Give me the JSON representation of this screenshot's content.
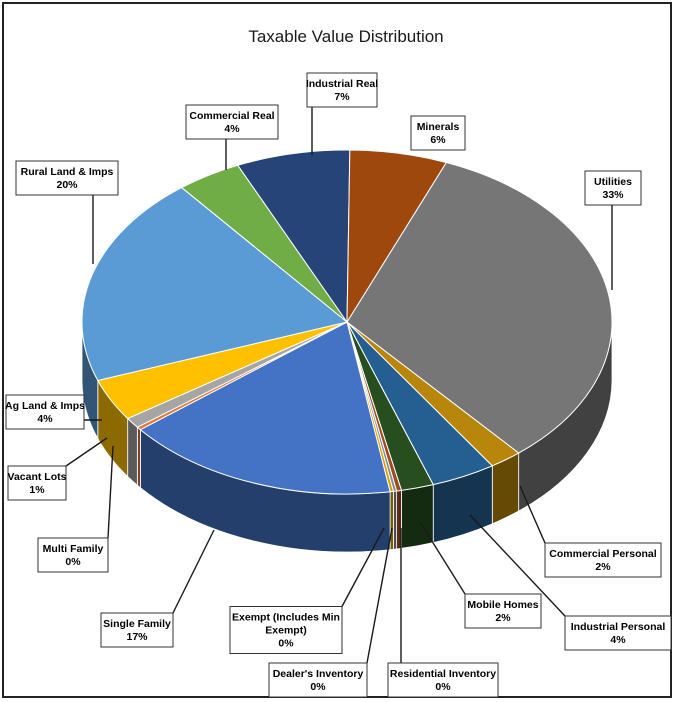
{
  "chart_data": {
    "type": "pie",
    "title": "Taxable Value Distribution",
    "legend": "none",
    "slices": [
      {
        "label": "Utilities",
        "pct_text": "33%",
        "value": 33,
        "color": "#767676"
      },
      {
        "label": "Commercial Personal",
        "pct_text": "2%",
        "value": 2,
        "color": "#b8860b"
      },
      {
        "label": "Industrial Personal",
        "pct_text": "4%",
        "value": 4,
        "color": "#255e91"
      },
      {
        "label": "Mobile Homes",
        "pct_text": "2%",
        "value": 2,
        "color": "#264e1f"
      },
      {
        "label": "Residential Inventory",
        "pct_text": "0%",
        "value": 0.3,
        "color": "#9e4a22"
      },
      {
        "label": "Dealer's Inventory",
        "pct_text": "0%",
        "value": 0.2,
        "color": "#8a8a8a"
      },
      {
        "label": "Exempt (Includes Min Exempt)",
        "pct_text": "0%",
        "value": 0.2,
        "color": "#d6a400"
      },
      {
        "label": "Single Family",
        "pct_text": "17%",
        "value": 17,
        "color": "#4472c4"
      },
      {
        "label": "Multi Family",
        "pct_text": "0%",
        "value": 0.3,
        "color": "#e07a3a"
      },
      {
        "label": "Vacant Lots",
        "pct_text": "1%",
        "value": 1,
        "color": "#a5a5a5"
      },
      {
        "label": "Ag Land & Imps",
        "pct_text": "4%",
        "value": 4,
        "color": "#ffc000"
      },
      {
        "label": "Rural Land & Imps",
        "pct_text": "20%",
        "value": 20,
        "color": "#5b9bd5"
      },
      {
        "label": "Commercial Real",
        "pct_text": "4%",
        "value": 4,
        "color": "#70ad47"
      },
      {
        "label": "Industrial Real",
        "pct_text": "7%",
        "value": 7,
        "color": "#264478"
      },
      {
        "label": "Minerals",
        "pct_text": "6%",
        "value": 6,
        "color": "#9e480e"
      }
    ]
  }
}
